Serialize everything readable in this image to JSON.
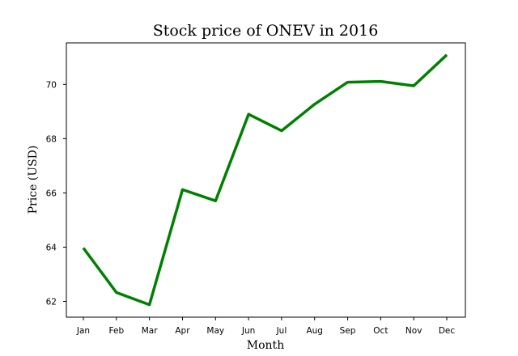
{
  "chart_data": {
    "type": "line",
    "title": "Stock price of ONEV in 2016",
    "xlabel": "Month",
    "ylabel": "Price (USD)",
    "categories": [
      "Jan",
      "Feb",
      "Mar",
      "Apr",
      "May",
      "Jun",
      "Jul",
      "Aug",
      "Sep",
      "Oct",
      "Nov",
      "Dec"
    ],
    "series": [
      {
        "values": [
          63.97,
          62.33,
          61.88,
          66.12,
          65.71,
          68.9,
          68.29,
          69.27,
          70.08,
          70.11,
          69.95,
          71.09
        ],
        "color": "#008000"
      }
    ],
    "ylim": [
      61.42,
      71.53
    ],
    "yticks": [
      62,
      64,
      66,
      68,
      70
    ],
    "grid": false,
    "legend": "none"
  }
}
